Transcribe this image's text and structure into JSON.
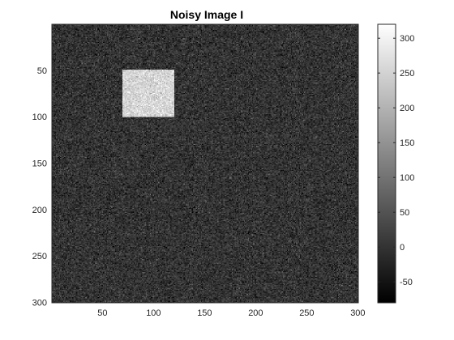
{
  "chart_data": {
    "type": "heatmap",
    "title": "Noisy Image I",
    "xlabel": "",
    "ylabel": "",
    "colormap": "gray",
    "image_size": [
      300,
      300
    ],
    "x_range": [
      0.5,
      300.5
    ],
    "y_range": [
      0.5,
      300.5
    ],
    "y_direction": "reverse",
    "x_ticks": [
      50,
      100,
      150,
      200,
      250,
      300
    ],
    "x_tick_labels": [
      "50",
      "100",
      "150",
      "200",
      "250",
      "300"
    ],
    "y_ticks": [
      50,
      100,
      150,
      200,
      250,
      300
    ],
    "y_tick_labels": [
      "50",
      "100",
      "150",
      "200",
      "250",
      "300"
    ],
    "background": {
      "mean": 0,
      "noise_std": 30
    },
    "square": {
      "x_range": [
        70,
        120
      ],
      "y_range": [
        50,
        100
      ],
      "mean": 255,
      "noise_std": 30
    },
    "colorbar": {
      "location": "right",
      "clim": [
        -80,
        320
      ],
      "ticks": [
        -50,
        0,
        50,
        100,
        150,
        200,
        250,
        300
      ],
      "tick_labels": [
        "-50",
        "0",
        "50",
        "100",
        "150",
        "200",
        "250",
        "300"
      ]
    },
    "grid": false
  },
  "colors": {
    "axis": "#262626",
    "background": "#ffffff"
  }
}
